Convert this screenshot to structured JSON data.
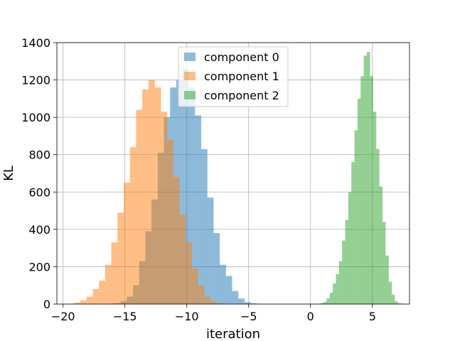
{
  "chart_data": {
    "type": "histogram",
    "title": "",
    "xlabel": "iteration",
    "ylabel": "KL",
    "xlim": [
      -20.5,
      8.0
    ],
    "ylim": [
      0,
      1400
    ],
    "xticks": [
      -20,
      -15,
      -10,
      -5,
      0,
      5
    ],
    "xtick_labels": [
      "−20",
      "−15",
      "−10",
      "−5",
      "0",
      "5"
    ],
    "yticks": [
      0,
      200,
      400,
      600,
      800,
      1000,
      1200,
      1400
    ],
    "ytick_labels": [
      "0",
      "200",
      "400",
      "600",
      "800",
      "1000",
      "1200",
      "1400"
    ],
    "grid": true,
    "legend_position": "top-center",
    "bar_opacity": 0.5,
    "series": [
      {
        "name": "component 0",
        "color": "#1f77b4",
        "bin_start": -16.35,
        "bin_width": 0.5,
        "counts": [
          2,
          5,
          15,
          40,
          100,
          230,
          390,
          560,
          810,
          1000,
          1160,
          1200,
          1260,
          1160,
          1010,
          830,
          570,
          380,
          210,
          150,
          70,
          30,
          10,
          4,
          2,
          1
        ]
      },
      {
        "name": "component 1",
        "color": "#ff7f0e",
        "bin_start": -19.1,
        "bin_width": 0.5,
        "counts": [
          8,
          20,
          40,
          80,
          125,
          210,
          330,
          490,
          650,
          840,
          1040,
          1150,
          1200,
          1160,
          1030,
          880,
          680,
          480,
          330,
          190,
          100,
          40,
          15,
          5,
          2
        ]
      },
      {
        "name": "component 2",
        "color": "#2ca02c",
        "bin_start": 0.55,
        "bin_width": 0.25,
        "counts": [
          2,
          5,
          12,
          30,
          60,
          110,
          160,
          230,
          340,
          450,
          600,
          760,
          930,
          1100,
          1220,
          1330,
          1350,
          1220,
          1030,
          830,
          630,
          440,
          260,
          120,
          50,
          15,
          5,
          2
        ]
      }
    ]
  }
}
